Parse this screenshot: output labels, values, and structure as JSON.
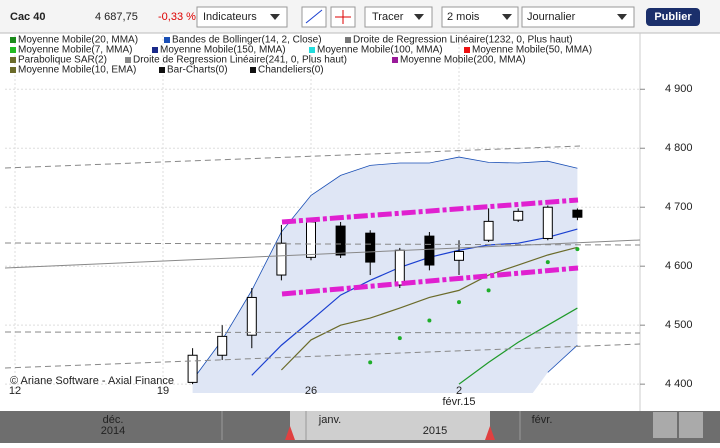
{
  "toolbar": {
    "symbol": "Cac 40",
    "price": "4 687,75",
    "change": "-0,33 %",
    "indicators": "Indicateurs",
    "draw": "Tracer",
    "period": "2 mois",
    "interval": "Journalier",
    "publish": "Publier"
  },
  "chart_data": {
    "type": "candlestick",
    "categories": [
      "12",
      null,
      null,
      null,
      null,
      "19",
      null,
      null,
      null,
      null,
      "26",
      null,
      null,
      null,
      null,
      "2 févr.15",
      null,
      null,
      null,
      null
    ],
    "open": [
      null,
      null,
      null,
      null,
      null,
      null,
      4403,
      4449,
      4483,
      4585,
      4615,
      4668,
      4656,
      4568,
      4651,
      4610,
      4644,
      4678,
      4647,
      4695
    ],
    "high": [
      null,
      null,
      null,
      null,
      null,
      null,
      4461,
      4500,
      4563,
      4670,
      4678,
      4675,
      4661,
      4631,
      4658,
      4644,
      4698,
      4698,
      4703,
      4698
    ],
    "low": [
      null,
      null,
      null,
      null,
      null,
      null,
      4400,
      4441,
      4461,
      4576,
      4610,
      4614,
      4585,
      4563,
      4593,
      4585,
      4641,
      4675,
      4644,
      4678
    ],
    "close": [
      null,
      null,
      null,
      null,
      null,
      null,
      4449,
      4481,
      4547,
      4639,
      4675,
      4619,
      4607,
      4627,
      4602,
      4625,
      4676,
      4693,
      4700,
      4683
    ],
    "up_color": "#ffffff",
    "down_color": "#000000",
    "ylim": [
      4385,
      4992
    ],
    "yticks": [
      {
        "value": 4400,
        "label": "4 400"
      },
      {
        "value": 4500,
        "label": "4 500"
      },
      {
        "value": 4600,
        "label": "4 600"
      },
      {
        "value": 4700,
        "label": "4 700"
      },
      {
        "value": 4800,
        "label": "4 800"
      },
      {
        "value": 4900,
        "label": "4 900"
      }
    ],
    "band": {
      "color": "#1a4fb5",
      "fill": "#dfe6f5",
      "upper": [
        null,
        null,
        null,
        null,
        null,
        null,
        4407,
        4475,
        4559,
        4658,
        4720,
        4754,
        4771,
        4775,
        4775,
        4785,
        4776,
        4775,
        4778,
        4766
      ],
      "lower": [
        null,
        null,
        null,
        null,
        null,
        null,
        null,
        null,
        null,
        null,
        null,
        null,
        null,
        null,
        null,
        null,
        null,
        null,
        4420,
        4466
      ]
    },
    "overlays": [
      {
        "style": "line",
        "color": "#1a3fd0",
        "values": [
          null,
          null,
          null,
          null,
          null,
          null,
          null,
          null,
          4415,
          4466,
          4508,
          4551,
          4576,
          4598,
          4615,
          4627,
          4636,
          4639,
          4649,
          4663
        ]
      },
      {
        "style": "line",
        "color": "#6b6b2a",
        "values": [
          null,
          null,
          null,
          null,
          null,
          null,
          null,
          null,
          null,
          4424,
          4475,
          4500,
          4512,
          4529,
          4547,
          4559,
          4585,
          4602,
          4619,
          4632
        ]
      },
      {
        "style": "line",
        "color": "#1f9a2a",
        "values": [
          null,
          null,
          null,
          null,
          null,
          null,
          null,
          null,
          null,
          null,
          null,
          null,
          null,
          null,
          null,
          4400,
          4437,
          4471,
          4500,
          4529
        ]
      },
      {
        "style": "dots",
        "color": "#1fae2a",
        "values": [
          null,
          null,
          null,
          null,
          null,
          null,
          null,
          null,
          null,
          null,
          null,
          null,
          4437,
          4478,
          4508,
          4539,
          4559,
          null,
          4607,
          4629
        ]
      }
    ],
    "legend": [
      {
        "name": "Moyenne Mobile(20, MMA)",
        "color": "#1a8a1a"
      },
      {
        "name": "Bandes de Bollinger(14, 2, Close)",
        "color": "#1a4fb5"
      },
      {
        "name": "Droite de Regression Linéaire(1232, 0, Plus haut)",
        "color": "#777777"
      },
      {
        "name": "Moyenne Mobile(7, MMA)",
        "color": "#22bb22"
      },
      {
        "name": "Moyenne Mobile(150, MMA)",
        "color": "#1a2a8a"
      },
      {
        "name": "Moyenne Mobile(100, MMA)",
        "color": "#22dddd"
      },
      {
        "name": "Moyenne Mobile(50, MMA)",
        "color": "#ee1111"
      },
      {
        "name": "Parabolique SAR(2)",
        "color": "#6b6b2a"
      },
      {
        "name": "Droite de Regression Linéaire(241, 0, Plus haut)",
        "color": "#888888"
      },
      {
        "name": "Moyenne Mobile(200, MMA)",
        "color": "#9a1a9a"
      },
      {
        "name": "Moyenne Mobile(10, EMA)",
        "color": "#6b6b2a"
      },
      {
        "name": "Bar-Charts(0)",
        "color": "#111111"
      },
      {
        "name": "Chandeliers(0)",
        "color": "#111111"
      }
    ]
  },
  "credit": "© Ariane Software - Axial Finance",
  "navigator": {
    "dec_month": "déc.",
    "dec_year": "2014",
    "jan_month": "janv.",
    "jan_year": "2015",
    "feb_month": "févr."
  }
}
